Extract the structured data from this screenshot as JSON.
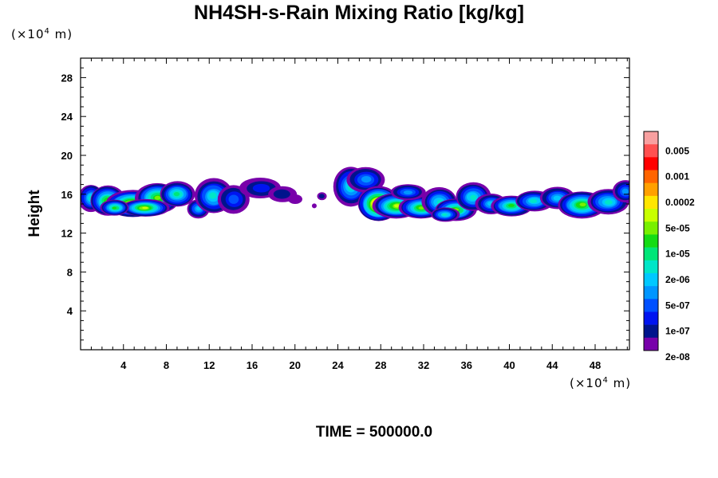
{
  "chart_data": {
    "type": "heatmap",
    "title": "NH4SH-s-Rain Mixing Ratio [kg/kg]",
    "ylabel": "Height",
    "xlabel": "",
    "x_unit": {
      "prefix": "(×10",
      "exp": "4",
      "suffix": " m)"
    },
    "y_unit": {
      "prefix": "(×10",
      "exp": "4",
      "suffix": " m)"
    },
    "x_range": [
      0,
      51.2
    ],
    "y_range": [
      0,
      30
    ],
    "x_ticks": [
      "4",
      "8",
      "12",
      "16",
      "20",
      "24",
      "28",
      "32",
      "36",
      "40",
      "44",
      "48"
    ],
    "y_ticks": [
      "4",
      "8",
      "12",
      "16",
      "20",
      "24",
      "28"
    ],
    "colorbar": {
      "labels": [
        "0.005",
        "0.001",
        "0.0002",
        "5e-05",
        "1e-05",
        "2e-06",
        "5e-07",
        "1e-07",
        "2e-08"
      ],
      "colors": [
        "#f8a0a0",
        "#ff5050",
        "#ff0000",
        "#ff6400",
        "#ffa000",
        "#ffe600",
        "#c8ff00",
        "#78f000",
        "#14dc14",
        "#00e678",
        "#00e6c8",
        "#00c8ff",
        "#0096ff",
        "#0050ff",
        "#0014f0",
        "#00148c",
        "#7800aa"
      ]
    },
    "features": [
      {
        "x": [
          0.2,
          21.0
        ],
        "y": [
          13.3,
          18.0
        ],
        "peak": "0.0002"
      },
      {
        "x": [
          21.5,
          23.5
        ],
        "y": [
          14.5,
          16.5
        ],
        "peak": "5e-07"
      },
      {
        "x": [
          24.0,
          51.2
        ],
        "y": [
          13.0,
          19.0
        ],
        "peak": "0.001"
      }
    ]
  },
  "footer": {
    "time": "TIME = 500000.0"
  }
}
